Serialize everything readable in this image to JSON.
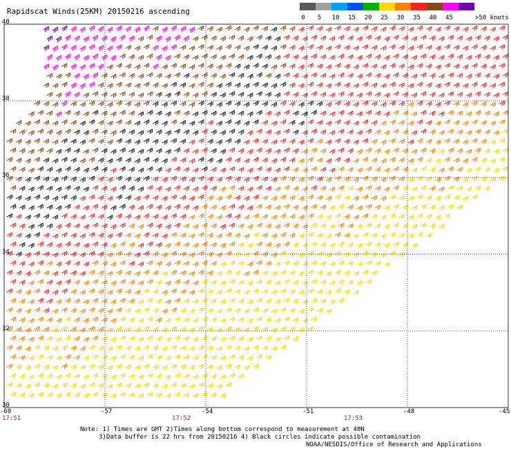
{
  "title": "Rapidscat Winds(25KM) 20150216 ascending",
  "legend": {
    "ticks": [
      "0",
      "5",
      "10",
      "15",
      "20",
      "25",
      "30",
      "35",
      "40",
      "45"
    ],
    "unit_label": ">50 knots",
    "colors": [
      "#5a5a5a",
      "#a0a0a0",
      "#00a0ff",
      "#0050ff",
      "#00b000",
      "#ffd700",
      "#ff8000",
      "#ff2020",
      "#8b4513",
      "#ff00ff",
      "#7000b0"
    ]
  },
  "lat_labels": [
    "40",
    "38",
    "36",
    "34",
    "32",
    "30"
  ],
  "lon_labels": [
    "-60",
    "-57",
    "-54",
    "-51",
    "-48",
    "-45"
  ],
  "time_labels": [
    "17:51",
    "17:52",
    "17:53"
  ],
  "notes": {
    "line1": "Note: 1) Times are GMT 2)Times along bottom correspond to measurement at 40N",
    "line2": "3)Data buffer is 22 hrs from 20150216 4) Black circles indicate possible contamination",
    "credit": "NOAA/NESDIS/Office of Research and Applications"
  },
  "map": {
    "lat_range": [
      30,
      40
    ],
    "lon_range": [
      -60,
      -45
    ],
    "grid_lats": [
      32,
      34,
      36,
      38
    ],
    "grid_lons": [
      -57,
      -54,
      -51,
      -48
    ],
    "swath_coverage": "strong westerly winds (35->50 kt, purple/magenta) north-west, decreasing to 20-30 kt (yellow/orange) toward the south-east"
  }
}
